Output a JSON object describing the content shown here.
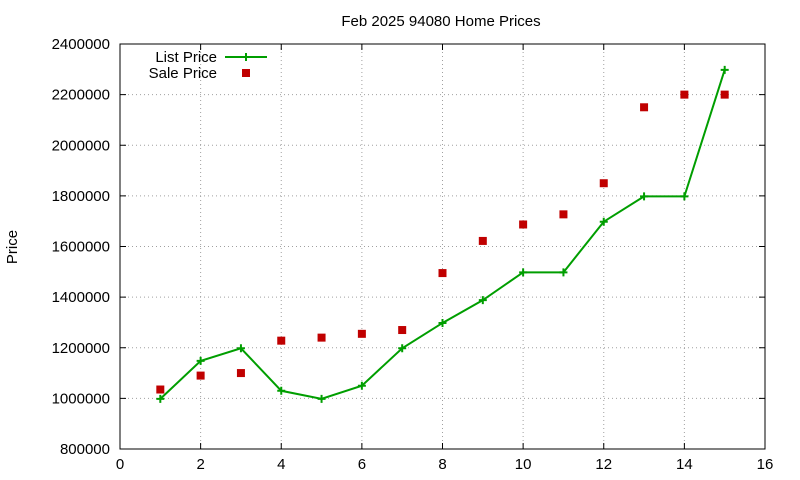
{
  "chart_data": {
    "type": "line",
    "title": "Feb 2025 94080 Home Prices",
    "xlabel": "",
    "ylabel": "Price",
    "xlim": [
      0,
      16
    ],
    "ylim": [
      800000,
      2400000
    ],
    "xticks": [
      0,
      2,
      4,
      6,
      8,
      10,
      12,
      14,
      16
    ],
    "yticks": [
      800000,
      1000000,
      1200000,
      1400000,
      1600000,
      1800000,
      2000000,
      2200000,
      2400000
    ],
    "grid": true,
    "legend_position": "top-left",
    "series": [
      {
        "name": "List Price",
        "style": "line-with-plus-markers",
        "color": "#009e00",
        "x": [
          1,
          2,
          3,
          4,
          5,
          6,
          7,
          8,
          9,
          10,
          11,
          12,
          13,
          14,
          15
        ],
        "values": [
          998000,
          1148000,
          1198000,
          1030000,
          998000,
          1050000,
          1198000,
          1298000,
          1388000,
          1498000,
          1498000,
          1698000,
          1798000,
          1798000,
          2298000
        ]
      },
      {
        "name": "Sale Price",
        "style": "square-points",
        "color": "#c00000",
        "x": [
          1,
          2,
          3,
          4,
          5,
          6,
          7,
          8,
          9,
          10,
          11,
          12,
          13,
          14,
          15
        ],
        "values": [
          1035000,
          1090000,
          1100000,
          1228000,
          1240000,
          1255000,
          1270000,
          1495000,
          1622000,
          1687000,
          1727000,
          1850000,
          2150000,
          2200000,
          2200000
        ]
      }
    ]
  }
}
